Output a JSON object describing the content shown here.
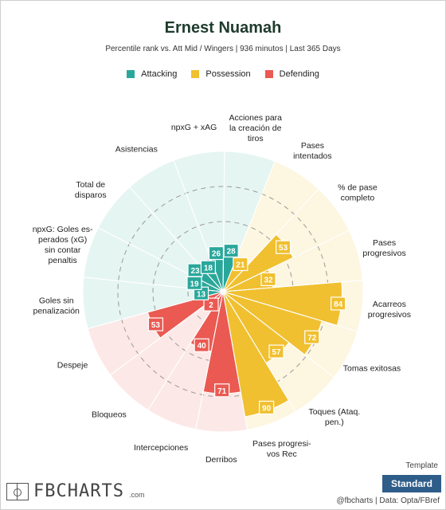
{
  "title": "Ernest Nuamah",
  "subtitle": "Percentile rank vs. Att Mid / Wingers | 936 minutos | Last 365 Days",
  "legend": [
    {
      "label": "Attacking",
      "color": "#2aa79b"
    },
    {
      "label": "Possession",
      "color": "#f0c030"
    },
    {
      "label": "Defending",
      "color": "#ea5a52"
    }
  ],
  "chart_data": {
    "type": "polar-bar",
    "range": [
      0,
      100
    ],
    "series": [
      {
        "name": "Attacking",
        "color": "#2aa79b",
        "bg": "#e5f5f2"
      },
      {
        "name": "Possession",
        "color": "#f0c030",
        "bg": "#fdf6e0"
      },
      {
        "name": "Defending",
        "color": "#ea5a52",
        "bg": "#fce8e7"
      }
    ],
    "stats": [
      {
        "label": "Acciones para la creación de tiros",
        "value": 28,
        "group": "Attacking"
      },
      {
        "label": "Pases intentados",
        "value": 21,
        "group": "Possession"
      },
      {
        "label": "% de pase completo",
        "value": 53,
        "group": "Possession"
      },
      {
        "label": "Pases progresivos",
        "value": 32,
        "group": "Possession"
      },
      {
        "label": "Acarreos progresivos",
        "value": 84,
        "group": "Possession"
      },
      {
        "label": "Tomas exitosas",
        "value": 72,
        "group": "Possession"
      },
      {
        "label": "Toques (Ataq. pen.)",
        "value": 57,
        "group": "Possession"
      },
      {
        "label": "Pases progresi-vos Rec",
        "value": 90,
        "group": "Possession"
      },
      {
        "label": "Derribos",
        "value": 71,
        "group": "Defending"
      },
      {
        "label": "Intercepciones",
        "value": 40,
        "group": "Defending"
      },
      {
        "label": "Bloqueos",
        "value": 2,
        "group": "Defending"
      },
      {
        "label": "Despeje",
        "value": 53,
        "group": "Defending"
      },
      {
        "label": "Goles sin penalización",
        "value": 13,
        "group": "Attacking"
      },
      {
        "label": "npxG: Goles es-perados (xG) sin contar penaltis",
        "value": 19,
        "group": "Attacking"
      },
      {
        "label": "Total de disparos",
        "value": 23,
        "group": "Attacking"
      },
      {
        "label": "Asistencias",
        "value": 18,
        "group": "Attacking"
      },
      {
        "label": "npxG + xAG",
        "value": 26,
        "group": "Attacking"
      }
    ],
    "axis_labels": [
      "Acciones para\nla creación de\ntiros",
      "Pases\nintentados",
      "% de pase\ncompleto",
      "Pases\nprogresivos",
      "Acarreos\nprogresivos",
      "Tomas exitosas",
      "Toques (Ataq.\npen.)",
      "Pases progresi-\nvos Rec",
      "Derribos",
      "Intercepciones",
      "Bloqueos",
      "Despeje",
      "Goles sin\npenalización",
      "npxG: Goles es-\nperados (xG)\nsin contar\npenaltis",
      "Total de\ndisparos",
      "Asistencias",
      "npxG + xAG"
    ]
  },
  "footer": {
    "logo_text": "FBCHARTS",
    "logo_suffix": ".com",
    "credit": "@fbcharts | Data: Opta/FBref",
    "template_label": "Template",
    "template_value": "Standard"
  }
}
